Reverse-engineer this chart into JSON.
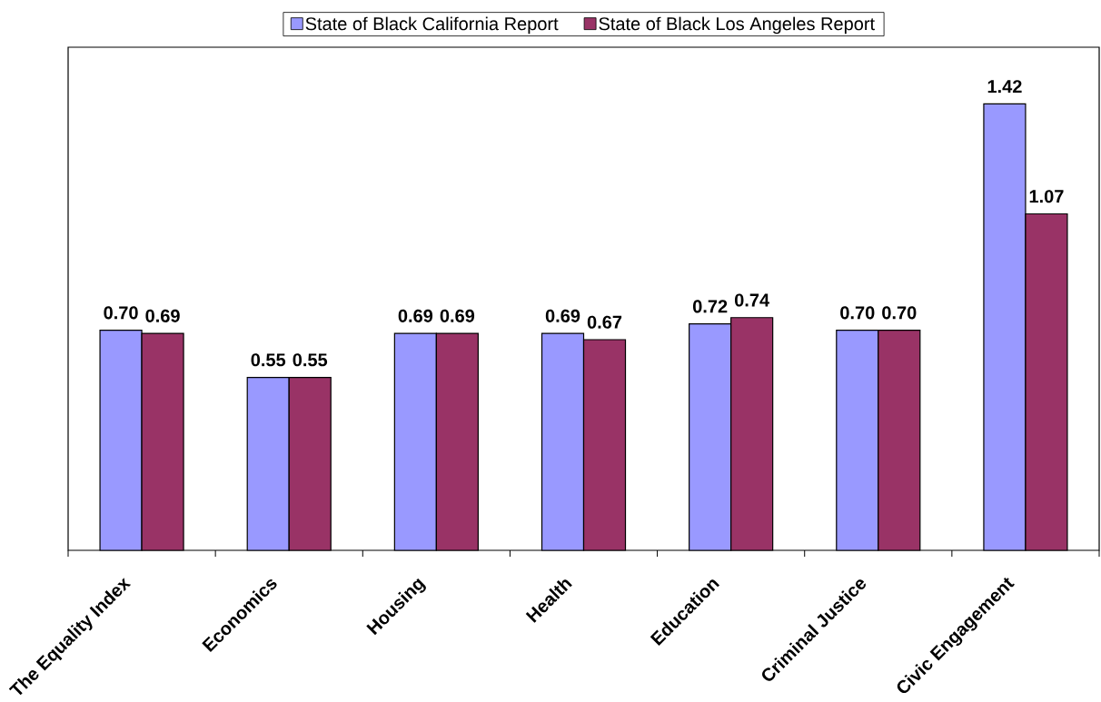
{
  "chart_data": {
    "type": "bar",
    "categories": [
      "The Equality Index",
      "Economics",
      "Housing",
      "Health",
      "Education",
      "Criminal Justice",
      "Civic Engagement"
    ],
    "series": [
      {
        "name": "State of Black California Report",
        "color": "#9999ff",
        "values": [
          0.7,
          0.55,
          0.69,
          0.69,
          0.72,
          0.7,
          1.42
        ],
        "value_labels": [
          "0.70",
          "0.55",
          "0.69",
          "0.69",
          "0.72",
          "0.70",
          "1.42"
        ]
      },
      {
        "name": "State of Black Los Angeles Report",
        "color": "#993366",
        "values": [
          0.69,
          0.55,
          0.69,
          0.67,
          0.74,
          0.7,
          1.07
        ],
        "value_labels": [
          "0.69",
          "0.55",
          "0.69",
          "0.67",
          "0.74",
          "0.70",
          "1.07"
        ]
      }
    ],
    "ylim": [
      0,
      1.6
    ],
    "legend": "top",
    "tick_labels": "x"
  }
}
